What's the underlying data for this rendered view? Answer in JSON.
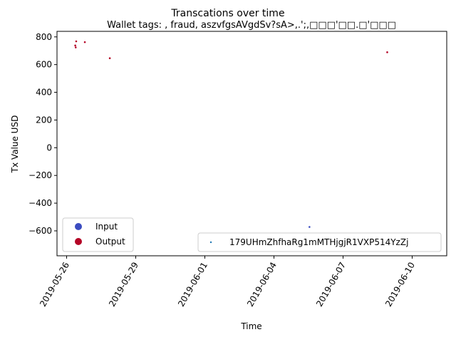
{
  "chart_data": {
    "type": "scatter",
    "title": "Transcations over time",
    "subtitle": "Wallet tags: , fraud, aszvfgsAVgdSv?sA>,.';,□□□'□□.□'□□□",
    "xlabel": "Time",
    "ylabel": "Tx Value USD",
    "xlim": [
      "2019-05-25T14:00",
      "2019-06-11T12:00"
    ],
    "ylim": [
      -780,
      840
    ],
    "xticks": [
      "2019-05-26",
      "2019-05-29",
      "2019-06-01",
      "2019-06-04",
      "2019-06-07",
      "2019-06-10"
    ],
    "yticks": [
      -600,
      -400,
      -200,
      0,
      200,
      400,
      600,
      800
    ],
    "grid": false,
    "legends": [
      {
        "placement": "lower-left",
        "entries": [
          {
            "label": "Input",
            "color": "#3b4cc0"
          },
          {
            "label": "Output",
            "color": "#b40426"
          }
        ]
      },
      {
        "placement": "lower-right",
        "entries": [
          {
            "label": "179UHmZhfhaRg1mMTHjgjR1VXP514YzZj",
            "color": "#1f77b4"
          }
        ]
      }
    ],
    "series": [
      {
        "name": "Output",
        "color": "#b40426",
        "points": [
          {
            "x": "2019-05-26T09:00",
            "y": 738
          },
          {
            "x": "2019-05-26T09:30",
            "y": 724
          },
          {
            "x": "2019-05-26T10:00",
            "y": 768
          },
          {
            "x": "2019-05-26T19:00",
            "y": 762
          },
          {
            "x": "2019-05-27T21:00",
            "y": 646
          },
          {
            "x": "2019-06-08T22:00",
            "y": 689
          }
        ]
      },
      {
        "name": "Input",
        "color": "#3b4cc0",
        "points": [
          {
            "x": "2019-06-05T13:00",
            "y": -572
          }
        ]
      }
    ]
  }
}
